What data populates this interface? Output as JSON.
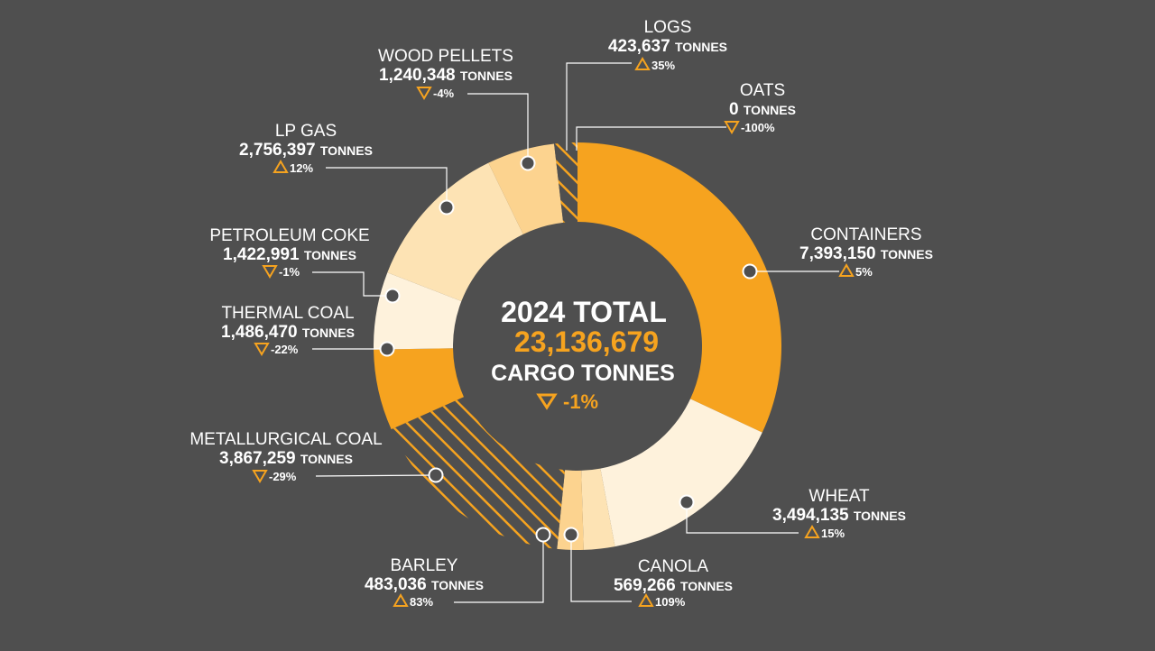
{
  "colors": {
    "background": "#4f4f4f",
    "accent": "#f6a31f",
    "tan_light": "#fde3b4",
    "tan_mid": "#fcd38f",
    "cream": "#fef2dc",
    "hatch": "#f6a31f",
    "leader": "#ffffff",
    "dot": "#4f4f4f"
  },
  "center": {
    "title": "2024 TOTAL",
    "value": "23,136,679",
    "subtitle": "CARGO TONNES",
    "change": "-1%",
    "change_direction": "down"
  },
  "chart_data": {
    "type": "pie",
    "variant": "donut",
    "total": 23136679,
    "unit": "TONNES",
    "slices": [
      {
        "name": "CONTAINERS",
        "value_label": "7,393,150",
        "value": 7393150,
        "unit": "TONNES",
        "change": "5%",
        "direction": "up",
        "fill": "accent"
      },
      {
        "name": "WHEAT",
        "value_label": "3,494,135",
        "value": 3494135,
        "unit": "TONNES",
        "change": "15%",
        "direction": "up",
        "fill": "cream"
      },
      {
        "name": "CANOLA",
        "value_label": "569,266",
        "value": 569266,
        "unit": "TONNES",
        "change": "109%",
        "direction": "up",
        "fill": "tan_light"
      },
      {
        "name": "BARLEY",
        "value_label": "483,036",
        "value": 483036,
        "unit": "TONNES",
        "change": "83%",
        "direction": "up",
        "fill": "tan_mid"
      },
      {
        "name": "METALLURGICAL COAL",
        "value_label": "3,867,259",
        "value": 3867259,
        "unit": "TONNES",
        "change": "-29%",
        "direction": "down",
        "fill": "hatch"
      },
      {
        "name": "THERMAL COAL",
        "value_label": "1,486,470",
        "value": 1486470,
        "unit": "TONNES",
        "change": "-22%",
        "direction": "down",
        "fill": "accent"
      },
      {
        "name": "PETROLEUM COKE",
        "value_label": "1,422,991",
        "value": 1422991,
        "unit": "TONNES",
        "change": "-1%",
        "direction": "down",
        "fill": "cream"
      },
      {
        "name": "LP GAS",
        "value_label": "2,756,397",
        "value": 2756397,
        "unit": "TONNES",
        "change": "12%",
        "direction": "up",
        "fill": "tan_light"
      },
      {
        "name": "WOOD PELLETS",
        "value_label": "1,240,348",
        "value": 1240348,
        "unit": "TONNES",
        "change": "-4%",
        "direction": "down",
        "fill": "tan_mid"
      },
      {
        "name": "LOGS",
        "value_label": "423,637",
        "value": 423637,
        "unit": "TONNES",
        "change": "35%",
        "direction": "up",
        "fill": "hatch"
      },
      {
        "name": "OATS",
        "value_label": "0",
        "value": 0,
        "unit": "TONNES",
        "change": "-100%",
        "direction": "down",
        "fill": "accent"
      }
    ]
  }
}
